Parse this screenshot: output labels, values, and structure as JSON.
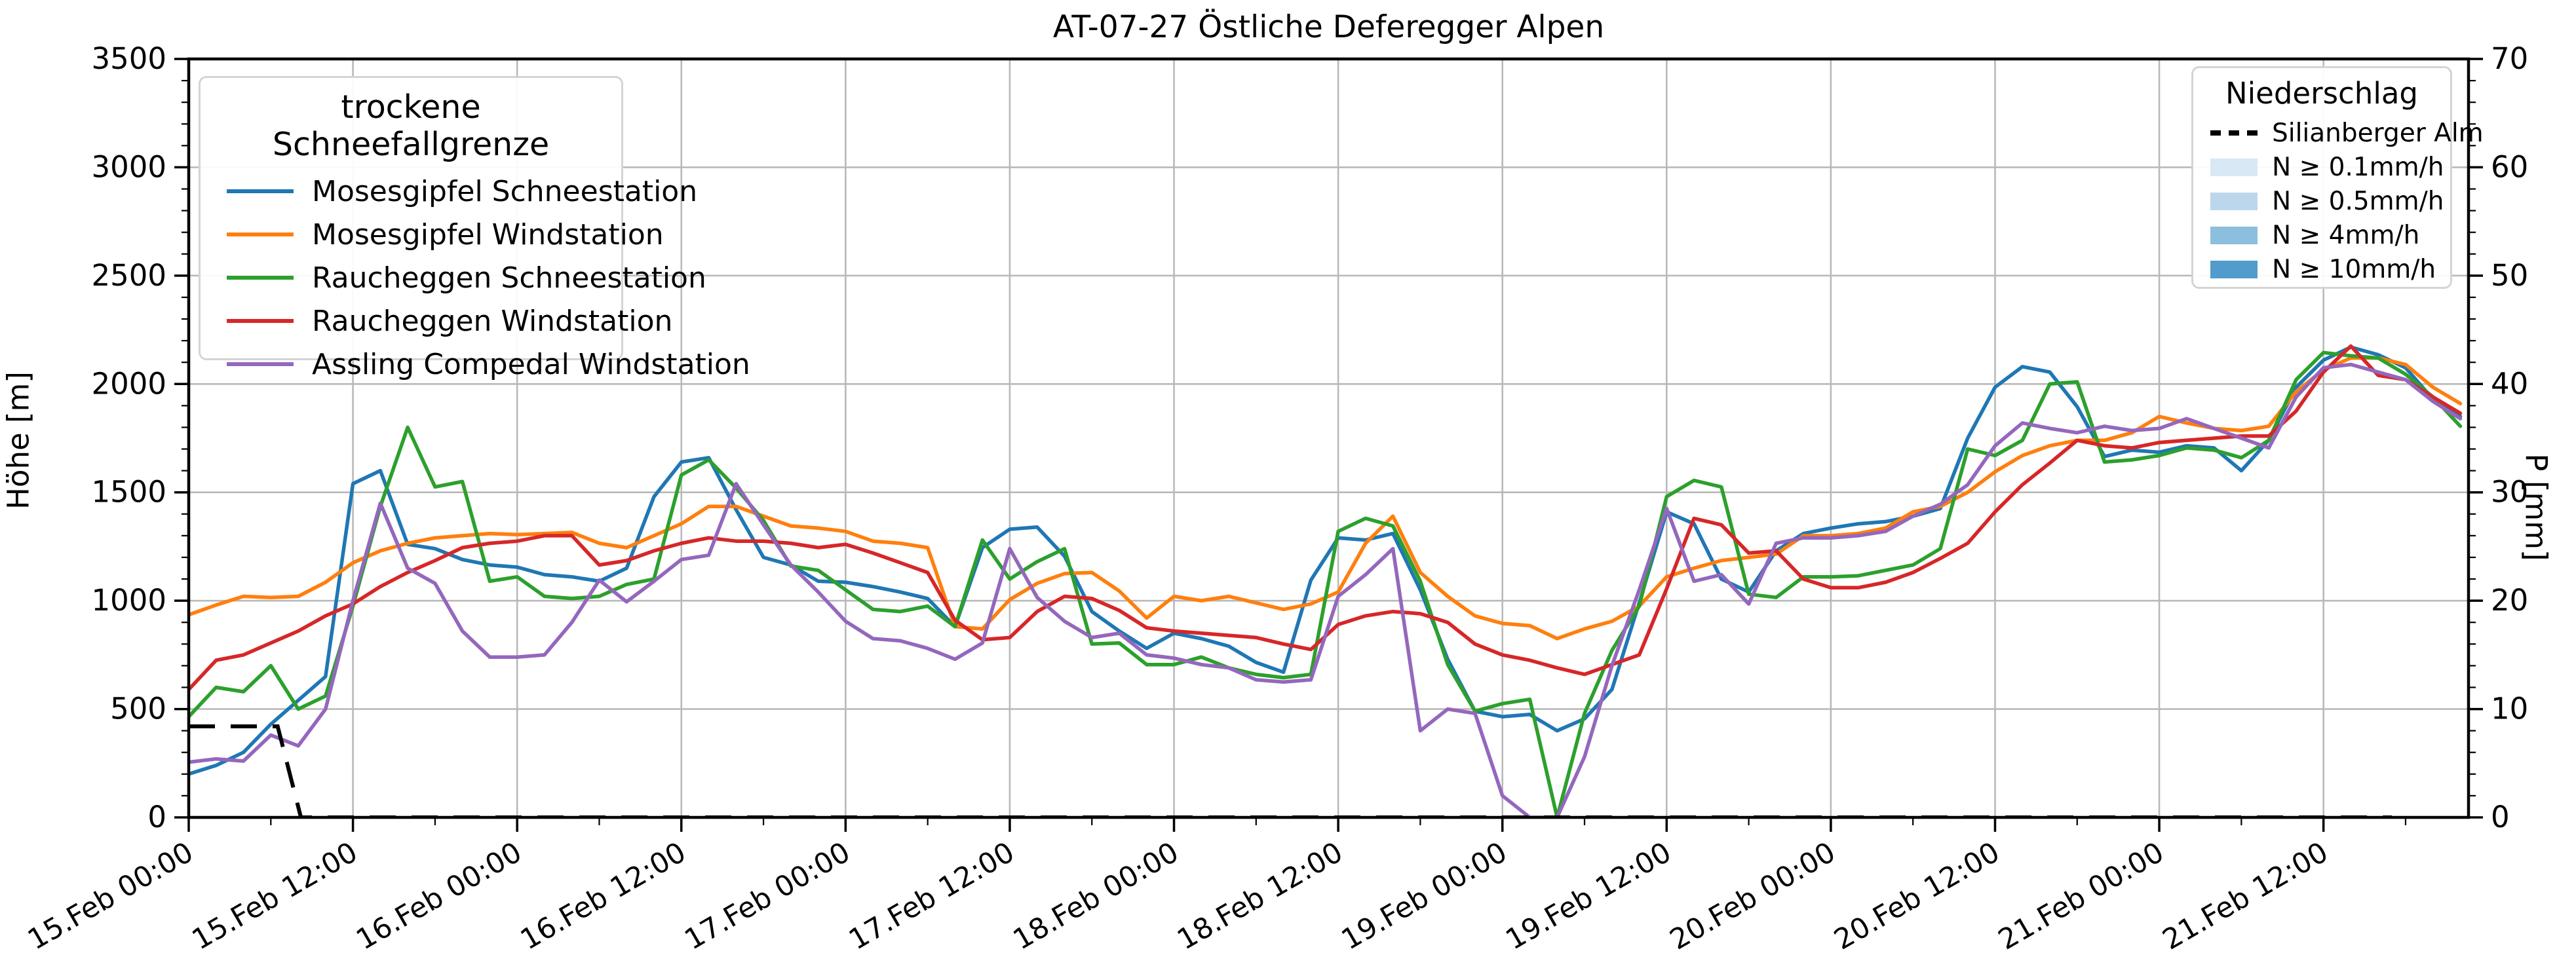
{
  "title": "AT-07-27 Östliche Deferegger Alpen",
  "axes": {
    "y_left": {
      "label": "Höhe [m]",
      "ticks": [
        0,
        500,
        1000,
        1500,
        2000,
        2500,
        3000,
        3500
      ],
      "min": 0,
      "max": 3500,
      "minor_step": 100
    },
    "y_right": {
      "label": "P [mm]",
      "ticks": [
        0,
        10,
        20,
        30,
        40,
        50,
        60,
        70
      ],
      "min": 0,
      "max": 70,
      "minor_step": 2
    },
    "x": {
      "tick_labels": [
        "15.Feb 00:00",
        "15.Feb 12:00",
        "16.Feb 00:00",
        "16.Feb 12:00",
        "17.Feb 00:00",
        "17.Feb 12:00",
        "18.Feb 00:00",
        "18.Feb 12:00",
        "19.Feb 00:00",
        "19.Feb 12:00",
        "20.Feb 00:00",
        "20.Feb 12:00",
        "21.Feb 00:00",
        "21.Feb 12:00"
      ],
      "tick_hours": [
        0,
        12,
        24,
        36,
        48,
        60,
        72,
        84,
        96,
        108,
        120,
        132,
        144,
        156
      ],
      "minor_step_hours": 6,
      "domain_hours": [
        0,
        166.6
      ]
    }
  },
  "legend_left": {
    "title": "trockene Schneefallgrenze",
    "items": [
      {
        "label": "Mosesgipfel Schneestation",
        "color": "#1f77b4"
      },
      {
        "label": "Mosesgipfel Windstation",
        "color": "#ff7f0e"
      },
      {
        "label": "Raucheggen Schneestation",
        "color": "#2ca02c"
      },
      {
        "label": "Raucheggen Windstation",
        "color": "#d62728"
      },
      {
        "label": "Assling Compedal Windstation",
        "color": "#9467bd"
      }
    ]
  },
  "legend_right": {
    "title": "Niederschlag",
    "items": [
      {
        "label": "Silianberger Alm",
        "type": "dashed-line",
        "color": "#000000"
      },
      {
        "label": "N ≥ 0.1mm/h",
        "type": "patch",
        "color": "#d9e8f5"
      },
      {
        "label": "N ≥ 0.5mm/h",
        "type": "patch",
        "color": "#bcd7eb"
      },
      {
        "label": "N ≥ 4mm/h",
        "type": "patch",
        "color": "#8bbfdd"
      },
      {
        "label": "N ≥ 10mm/h",
        "type": "patch",
        "color": "#519ccc"
      }
    ]
  },
  "chart_data": {
    "type": "line",
    "title": "AT-07-27 Östliche Deferegger Alpen",
    "xlabel": "",
    "ylabel": "Höhe [m]",
    "y2label": "P [mm]",
    "ylim": [
      0,
      3500
    ],
    "y2lim": [
      0,
      70
    ],
    "grid": true,
    "x_unit": "hours since 15.Feb 00:00",
    "x_hours": [
      0,
      2,
      4,
      6,
      8,
      10,
      12,
      14,
      16,
      18,
      20,
      22,
      24,
      26,
      28,
      30,
      32,
      34,
      36,
      38,
      40,
      42,
      44,
      46,
      48,
      50,
      52,
      54,
      56,
      58,
      60,
      62,
      64,
      66,
      68,
      70,
      72,
      74,
      76,
      78,
      80,
      82,
      84,
      86,
      88,
      90,
      92,
      94,
      96,
      98,
      100,
      102,
      104,
      106,
      108,
      110,
      112,
      114,
      116,
      118,
      120,
      122,
      124,
      126,
      128,
      130,
      132,
      134,
      136,
      138,
      140,
      142,
      144,
      146,
      148,
      150,
      152,
      154,
      156,
      158,
      160,
      162,
      164,
      166
    ],
    "series": [
      {
        "name": "Mosesgipfel Schneestation",
        "color": "#1f77b4",
        "values": [
          200,
          240,
          300,
          430,
          540,
          650,
          1540,
          1600,
          1260,
          1240,
          1190,
          1165,
          1155,
          1120,
          1110,
          1090,
          1150,
          1480,
          1640,
          1660,
          1420,
          1200,
          1165,
          1090,
          1085,
          1065,
          1040,
          1010,
          880,
          1245,
          1330,
          1340,
          1205,
          950,
          860,
          780,
          850,
          825,
          790,
          715,
          670,
          1095,
          1290,
          1280,
          1310,
          1050,
          730,
          490,
          465,
          475,
          400,
          455,
          590,
          990,
          1410,
          1355,
          1100,
          1040,
          1230,
          1310,
          1335,
          1355,
          1365,
          1390,
          1425,
          1750,
          1985,
          2080,
          2055,
          1895,
          1665,
          1695,
          1685,
          1715,
          1705,
          1600,
          1740,
          1985,
          2110,
          2170,
          2135,
          2075,
          1930,
          1850
        ]
      },
      {
        "name": "Mosesgipfel Windstation",
        "color": "#ff7f0e",
        "values": [
          935,
          980,
          1020,
          1015,
          1020,
          1085,
          1175,
          1230,
          1265,
          1290,
          1300,
          1310,
          1305,
          1310,
          1315,
          1265,
          1245,
          1300,
          1355,
          1435,
          1435,
          1390,
          1345,
          1335,
          1320,
          1275,
          1265,
          1245,
          880,
          870,
          1005,
          1080,
          1125,
          1130,
          1045,
          920,
          1020,
          1000,
          1020,
          990,
          960,
          985,
          1040,
          1265,
          1390,
          1130,
          1020,
          930,
          895,
          885,
          825,
          870,
          905,
          975,
          1110,
          1150,
          1185,
          1200,
          1215,
          1300,
          1300,
          1310,
          1335,
          1410,
          1435,
          1500,
          1595,
          1670,
          1715,
          1740,
          1740,
          1775,
          1850,
          1820,
          1795,
          1785,
          1805,
          1965,
          2065,
          2120,
          2120,
          2090,
          1985,
          1910
        ]
      },
      {
        "name": "Raucheggen Schneestation",
        "color": "#2ca02c",
        "values": [
          465,
          600,
          580,
          700,
          500,
          560,
          975,
          1435,
          1800,
          1525,
          1550,
          1090,
          1110,
          1020,
          1010,
          1020,
          1075,
          1100,
          1580,
          1650,
          1520,
          1370,
          1160,
          1140,
          1050,
          960,
          950,
          975,
          880,
          1280,
          1100,
          1180,
          1240,
          800,
          805,
          705,
          705,
          740,
          690,
          660,
          645,
          660,
          1320,
          1380,
          1345,
          1090,
          705,
          490,
          525,
          545,
          0,
          480,
          770,
          975,
          1480,
          1555,
          1525,
          1030,
          1015,
          1110,
          1110,
          1115,
          1140,
          1165,
          1240,
          1700,
          1670,
          1740,
          2000,
          2010,
          1640,
          1650,
          1670,
          1705,
          1695,
          1660,
          1740,
          2020,
          2145,
          2130,
          2120,
          2045,
          1940,
          1805
        ]
      },
      {
        "name": "Raucheggen Windstation",
        "color": "#d62728",
        "values": [
          590,
          725,
          750,
          805,
          860,
          930,
          985,
          1065,
          1130,
          1185,
          1245,
          1265,
          1275,
          1300,
          1300,
          1165,
          1185,
          1230,
          1265,
          1290,
          1275,
          1275,
          1265,
          1245,
          1260,
          1220,
          1175,
          1130,
          910,
          820,
          830,
          950,
          1020,
          1010,
          955,
          875,
          860,
          850,
          840,
          830,
          800,
          775,
          890,
          930,
          950,
          940,
          900,
          800,
          750,
          725,
          690,
          660,
          705,
          750,
          1055,
          1380,
          1350,
          1220,
          1230,
          1100,
          1060,
          1060,
          1085,
          1130,
          1195,
          1265,
          1410,
          1535,
          1635,
          1740,
          1715,
          1705,
          1730,
          1740,
          1750,
          1760,
          1760,
          1875,
          2055,
          2175,
          2040,
          2020,
          1940,
          1865
        ]
      },
      {
        "name": "Assling Compedal Windstation",
        "color": "#9467bd",
        "values": [
          255,
          270,
          260,
          380,
          330,
          500,
          1000,
          1450,
          1150,
          1080,
          860,
          740,
          740,
          750,
          900,
          1095,
          995,
          1090,
          1190,
          1210,
          1540,
          1350,
          1165,
          1040,
          905,
          825,
          815,
          780,
          730,
          805,
          1240,
          1015,
          905,
          830,
          850,
          750,
          735,
          705,
          690,
          635,
          625,
          635,
          1020,
          1120,
          1240,
          400,
          500,
          480,
          100,
          0,
          0,
          280,
          700,
          1050,
          1425,
          1090,
          1120,
          985,
          1265,
          1290,
          1290,
          1300,
          1320,
          1390,
          1445,
          1535,
          1715,
          1820,
          1795,
          1775,
          1805,
          1785,
          1795,
          1840,
          1795,
          1750,
          1705,
          1940,
          2075,
          2090,
          2055,
          2020,
          1920,
          1840
        ]
      }
    ],
    "dashed_series": {
      "name": "Silianberger Alm",
      "color": "#000000",
      "style": "dashed",
      "x_hours": [
        0,
        6.5,
        8.2,
        161
      ],
      "values": [
        420,
        420,
        0,
        0
      ]
    }
  }
}
